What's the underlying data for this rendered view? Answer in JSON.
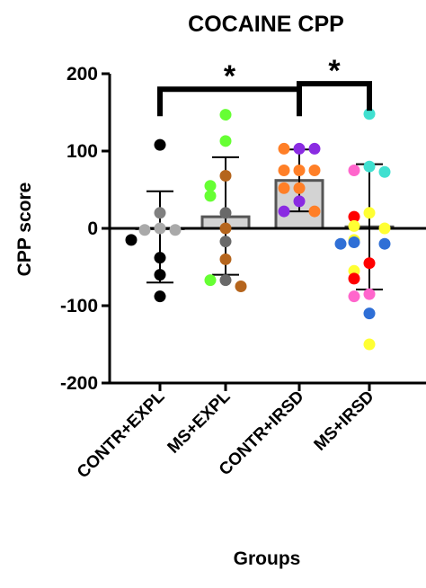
{
  "chart_data": {
    "type": "bar",
    "title": "COCAINE CPP",
    "xlabel": "Groups",
    "ylabel": "CPP score",
    "ylim": [
      -200,
      200
    ],
    "yticks": [
      -200,
      -100,
      0,
      100,
      200
    ],
    "yticklabels": [
      "-200",
      "-100",
      "0",
      "100",
      "200"
    ],
    "categories": [
      "CONTR+EXPL",
      "MS+EXPL",
      "CONTR+IRSD",
      "MS+IRSD"
    ],
    "means": [
      0,
      15,
      62,
      2
    ],
    "error_upper": [
      48,
      92,
      102,
      83
    ],
    "error_lower": [
      -70,
      -60,
      22,
      -79
    ],
    "bar_fill": "#d3d3d3",
    "points": [
      [
        {
          "y": 108,
          "color": "#000000"
        },
        {
          "y": 20,
          "color": "#808080"
        },
        {
          "y": 0,
          "color": "#a9a9a9"
        },
        {
          "y": -2,
          "color": "#a9a9a9"
        },
        {
          "y": -2,
          "color": "#a9a9a9"
        },
        {
          "y": -15,
          "color": "#000000"
        },
        {
          "y": -38,
          "color": "#000000"
        },
        {
          "y": -60,
          "color": "#000000"
        },
        {
          "y": -88,
          "color": "#000000"
        }
      ],
      [
        {
          "y": 147,
          "color": "#66ff33"
        },
        {
          "y": 113,
          "color": "#66ff33"
        },
        {
          "y": 68,
          "color": "#b5651d"
        },
        {
          "y": 55,
          "color": "#66ff33"
        },
        {
          "y": 42,
          "color": "#66ff33"
        },
        {
          "y": 20,
          "color": "#696969"
        },
        {
          "y": 0,
          "color": "#b5651d"
        },
        {
          "y": -17,
          "color": "#696969"
        },
        {
          "y": -40,
          "color": "#b5651d"
        },
        {
          "y": -67,
          "color": "#696969"
        },
        {
          "y": -67,
          "color": "#66ff33"
        },
        {
          "y": -75,
          "color": "#b5651d"
        }
      ],
      [
        {
          "y": 103,
          "color": "#8a2be2"
        },
        {
          "y": 103,
          "color": "#ff7f27"
        },
        {
          "y": 103,
          "color": "#8a2be2"
        },
        {
          "y": 75,
          "color": "#ff7f27"
        },
        {
          "y": 75,
          "color": "#ff7f27"
        },
        {
          "y": 75,
          "color": "#ff7f27"
        },
        {
          "y": 52,
          "color": "#ff7f27"
        },
        {
          "y": 52,
          "color": "#ff7f27"
        },
        {
          "y": 35,
          "color": "#8a2be2"
        },
        {
          "y": 22,
          "color": "#8a2be2"
        },
        {
          "y": 22,
          "color": "#ff7f27"
        }
      ],
      [
        {
          "y": 148,
          "color": "#40e0d0"
        },
        {
          "y": 80,
          "color": "#40e0d0"
        },
        {
          "y": 75,
          "color": "#ff66cc"
        },
        {
          "y": 73,
          "color": "#40e0d0"
        },
        {
          "y": 20,
          "color": "#ffff33"
        },
        {
          "y": 15,
          "color": "#ff0000"
        },
        {
          "y": 3,
          "color": "#ffff33"
        },
        {
          "y": 0,
          "color": "#ffff33"
        },
        {
          "y": -15,
          "color": "#ffff33"
        },
        {
          "y": -18,
          "color": "#2f6fd6"
        },
        {
          "y": -20,
          "color": "#2f6fd6"
        },
        {
          "y": -20,
          "color": "#2f6fd6"
        },
        {
          "y": -45,
          "color": "#ff0000"
        },
        {
          "y": -55,
          "color": "#ffff33"
        },
        {
          "y": -65,
          "color": "#ff0000"
        },
        {
          "y": -85,
          "color": "#ff66cc"
        },
        {
          "y": -88,
          "color": "#ff66cc"
        },
        {
          "y": -110,
          "color": "#2f6fd6"
        },
        {
          "y": -150,
          "color": "#ffff33"
        }
      ]
    ],
    "significance": [
      {
        "between": [
          0,
          2
        ],
        "y": 180,
        "label": "*"
      },
      {
        "between": [
          2,
          3
        ],
        "y": 187,
        "label": "*"
      }
    ],
    "grid": false,
    "legend": "none"
  }
}
